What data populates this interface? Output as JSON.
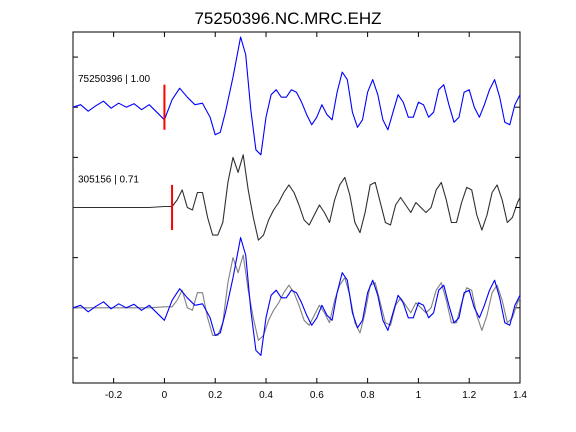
{
  "chart_data": {
    "type": "line",
    "title": "75250396.NC.MRC.EHZ",
    "xlabel": "",
    "ylabel": "",
    "xlim": [
      -0.36,
      1.4
    ],
    "x_ticks": [
      -0.2,
      0,
      0.2,
      0.4,
      0.6,
      0.8,
      1,
      1.2,
      1.4
    ],
    "x_tick_labels": [
      "-0.2",
      "0",
      "0.2",
      "0.4",
      "0.6",
      "0.8",
      "1",
      "1.2",
      "1.4"
    ],
    "y_ticks": [
      0.5,
      1.5,
      2.5,
      3.5,
      4.5,
      5.5,
      6.5
    ],
    "grid": false,
    "traces": [
      {
        "label": "75250396 | 1.00",
        "offset": 5.5,
        "pick_time": 0.0,
        "color": "#0000ff",
        "points": [
          [
            -0.36,
            0.0
          ],
          [
            -0.33,
            0.05
          ],
          [
            -0.3,
            -0.08
          ],
          [
            -0.27,
            0.03
          ],
          [
            -0.24,
            0.12
          ],
          [
            -0.21,
            -0.02
          ],
          [
            -0.18,
            0.08
          ],
          [
            -0.15,
            0.0
          ],
          [
            -0.12,
            0.07
          ],
          [
            -0.09,
            -0.05
          ],
          [
            -0.06,
            0.05
          ],
          [
            -0.03,
            -0.1
          ],
          [
            0.0,
            -0.25
          ],
          [
            0.03,
            0.15
          ],
          [
            0.06,
            0.38
          ],
          [
            0.09,
            0.2
          ],
          [
            0.12,
            0.05
          ],
          [
            0.15,
            0.08
          ],
          [
            0.18,
            -0.2
          ],
          [
            0.2,
            -0.55
          ],
          [
            0.22,
            -0.5
          ],
          [
            0.24,
            -0.1
          ],
          [
            0.27,
            0.6
          ],
          [
            0.3,
            1.4
          ],
          [
            0.32,
            1.05
          ],
          [
            0.34,
            -0.05
          ],
          [
            0.36,
            -0.85
          ],
          [
            0.38,
            -0.95
          ],
          [
            0.4,
            -0.2
          ],
          [
            0.42,
            0.25
          ],
          [
            0.44,
            0.35
          ],
          [
            0.46,
            0.2
          ],
          [
            0.48,
            0.2
          ],
          [
            0.5,
            0.35
          ],
          [
            0.52,
            0.3
          ],
          [
            0.54,
            0.1
          ],
          [
            0.56,
            -0.15
          ],
          [
            0.58,
            -0.35
          ],
          [
            0.6,
            -0.2
          ],
          [
            0.62,
            0.05
          ],
          [
            0.64,
            -0.15
          ],
          [
            0.66,
            -0.25
          ],
          [
            0.68,
            0.3
          ],
          [
            0.7,
            0.7
          ],
          [
            0.72,
            0.55
          ],
          [
            0.74,
            -0.1
          ],
          [
            0.76,
            -0.4
          ],
          [
            0.78,
            -0.25
          ],
          [
            0.8,
            0.3
          ],
          [
            0.82,
            0.55
          ],
          [
            0.84,
            0.25
          ],
          [
            0.86,
            -0.25
          ],
          [
            0.88,
            -0.45
          ],
          [
            0.9,
            -0.1
          ],
          [
            0.92,
            0.25
          ],
          [
            0.94,
            0.1
          ],
          [
            0.96,
            -0.2
          ],
          [
            0.98,
            -0.2
          ],
          [
            1.0,
            0.1
          ],
          [
            1.02,
            0.05
          ],
          [
            1.04,
            -0.2
          ],
          [
            1.06,
            -0.1
          ],
          [
            1.08,
            0.35
          ],
          [
            1.1,
            0.45
          ],
          [
            1.12,
            0.05
          ],
          [
            1.14,
            -0.3
          ],
          [
            1.16,
            -0.2
          ],
          [
            1.18,
            0.3
          ],
          [
            1.2,
            0.35
          ],
          [
            1.22,
            0.0
          ],
          [
            1.24,
            -0.2
          ],
          [
            1.26,
            0.05
          ],
          [
            1.28,
            0.35
          ],
          [
            1.3,
            0.55
          ],
          [
            1.32,
            0.2
          ],
          [
            1.34,
            -0.3
          ],
          [
            1.36,
            -0.35
          ],
          [
            1.38,
            0.05
          ],
          [
            1.4,
            0.25
          ]
        ]
      },
      {
        "label": "305156 | 0.71",
        "offset": 3.5,
        "pick_time": 0.03,
        "color": "#303030",
        "points": [
          [
            -0.36,
            0.0
          ],
          [
            -0.3,
            0.0
          ],
          [
            -0.24,
            0.0
          ],
          [
            -0.18,
            0.0
          ],
          [
            -0.12,
            0.0
          ],
          [
            -0.06,
            0.0
          ],
          [
            0.0,
            0.02
          ],
          [
            0.03,
            0.02
          ],
          [
            0.05,
            0.15
          ],
          [
            0.07,
            0.35
          ],
          [
            0.09,
            0.0
          ],
          [
            0.11,
            -0.05
          ],
          [
            0.13,
            0.3
          ],
          [
            0.15,
            0.3
          ],
          [
            0.17,
            -0.2
          ],
          [
            0.19,
            -0.55
          ],
          [
            0.21,
            -0.55
          ],
          [
            0.23,
            -0.3
          ],
          [
            0.25,
            0.5
          ],
          [
            0.27,
            1.0
          ],
          [
            0.29,
            0.7
          ],
          [
            0.31,
            1.05
          ],
          [
            0.33,
            0.35
          ],
          [
            0.35,
            -0.2
          ],
          [
            0.37,
            -0.65
          ],
          [
            0.39,
            -0.55
          ],
          [
            0.41,
            -0.25
          ],
          [
            0.43,
            -0.05
          ],
          [
            0.45,
            0.1
          ],
          [
            0.47,
            0.3
          ],
          [
            0.49,
            0.45
          ],
          [
            0.51,
            0.3
          ],
          [
            0.53,
            0.05
          ],
          [
            0.55,
            -0.25
          ],
          [
            0.57,
            -0.35
          ],
          [
            0.59,
            -0.15
          ],
          [
            0.61,
            0.05
          ],
          [
            0.63,
            -0.1
          ],
          [
            0.65,
            -0.3
          ],
          [
            0.67,
            0.15
          ],
          [
            0.69,
            0.45
          ],
          [
            0.71,
            0.6
          ],
          [
            0.73,
            0.25
          ],
          [
            0.75,
            -0.3
          ],
          [
            0.77,
            -0.5
          ],
          [
            0.79,
            -0.1
          ],
          [
            0.81,
            0.45
          ],
          [
            0.83,
            0.5
          ],
          [
            0.85,
            0.1
          ],
          [
            0.87,
            -0.3
          ],
          [
            0.89,
            -0.35
          ],
          [
            0.91,
            0.05
          ],
          [
            0.93,
            0.2
          ],
          [
            0.95,
            0.05
          ],
          [
            0.97,
            -0.1
          ],
          [
            0.99,
            0.1
          ],
          [
            1.01,
            0.0
          ],
          [
            1.03,
            -0.1
          ],
          [
            1.05,
            0.0
          ],
          [
            1.07,
            0.35
          ],
          [
            1.09,
            0.5
          ],
          [
            1.11,
            0.15
          ],
          [
            1.13,
            -0.3
          ],
          [
            1.15,
            -0.3
          ],
          [
            1.17,
            0.1
          ],
          [
            1.19,
            0.4
          ],
          [
            1.21,
            0.35
          ],
          [
            1.23,
            -0.15
          ],
          [
            1.25,
            -0.45
          ],
          [
            1.27,
            -0.15
          ],
          [
            1.29,
            0.3
          ],
          [
            1.31,
            0.45
          ],
          [
            1.33,
            0.15
          ],
          [
            1.35,
            -0.3
          ],
          [
            1.37,
            -0.2
          ],
          [
            1.39,
            0.1
          ],
          [
            1.4,
            0.2
          ]
        ]
      }
    ],
    "overlay_offset": 1.5
  }
}
